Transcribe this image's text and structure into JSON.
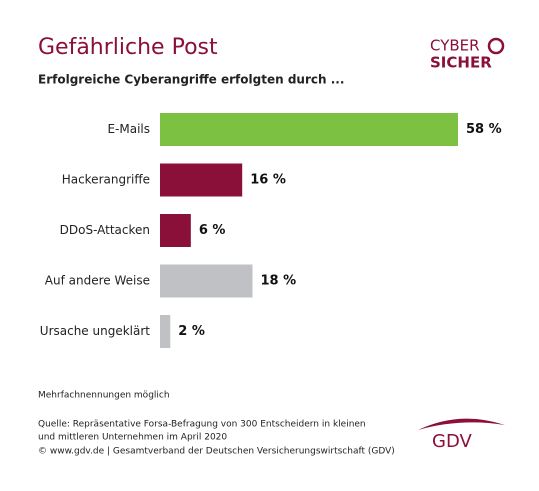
{
  "chart_data": {
    "type": "bar",
    "orientation": "horizontal",
    "title": "Gefährliche Post",
    "subtitle": "Erfolgreiche Cyberangriffe erfolgten durch ...",
    "categories": [
      "E-Mails",
      "Hackerangriffe",
      "DDoS-Attacken",
      "Auf andere Weise",
      "Ursache ungeklärt"
    ],
    "values": [
      58,
      16,
      6,
      18,
      2
    ],
    "value_labels": [
      "58 %",
      "16 %",
      "6 %",
      "18 %",
      "2 %"
    ],
    "colors": [
      "#7dc142",
      "#8b1039",
      "#8b1039",
      "#bfc1c4",
      "#bfc1c4"
    ],
    "note": "Mehrfachnennungen möglich",
    "source": [
      "Quelle: Repräsentative Forsa-Befragung von 300 Entscheidern in kleinen",
      "und mittleren Unternehmen im April 2020",
      "© www.gdv.de | Gesamtverband der Deutschen Versicherungswirtschaft (GDV)"
    ],
    "logo": [
      "CYBER",
      "SICHER"
    ],
    "publisher_logo": "GDV"
  }
}
